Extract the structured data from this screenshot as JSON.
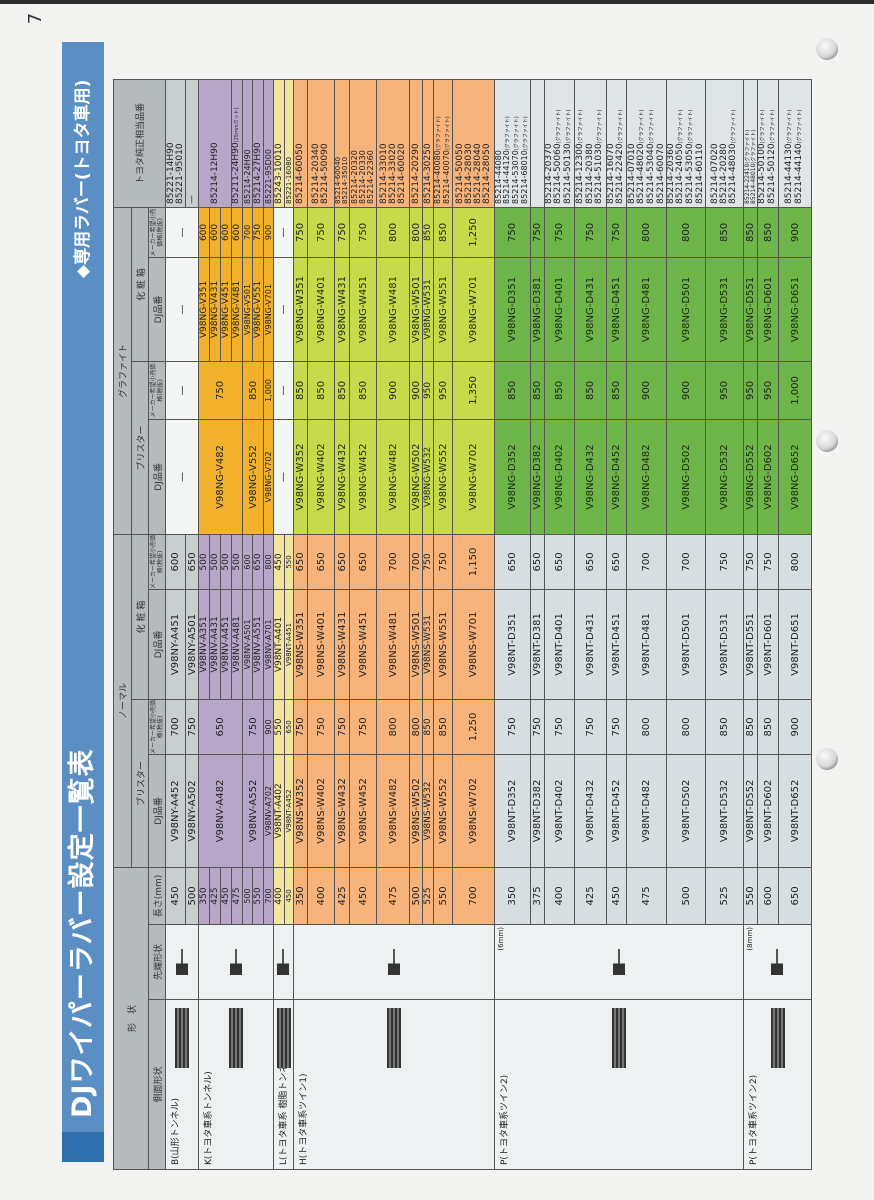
{
  "page_number": "7",
  "title": "DJワイパーラバー設定一覧表",
  "subtitle": "◆専用ラバー(トヨタ車用)",
  "headers": {
    "shape": "形　状",
    "side": "側面形状",
    "tip": "先端形状",
    "length": "長さ(mm)",
    "normal": "ノーマル",
    "graphite": "グラファイト",
    "blister": "ブリスター",
    "box": "化 粧 箱",
    "dj": "DJ品番",
    "price": "メーカー希望小売価格(税抜)",
    "toyota": "トヨタ純正相当品番"
  },
  "toyota_note": "グラファイト",
  "groups": [
    {
      "label": "B(山形トンネル)",
      "tip_note": "",
      "colors": {
        "normal": "#c8cdd0",
        "graphite": "#f4f5f5",
        "toyota": "#c8cdd0"
      },
      "rows": [
        {
          "length": "450",
          "nb": "V98NY-A452",
          "nbp": "700",
          "nx": "V98NY-A451",
          "nxp": "600",
          "gb": "—",
          "gbp": "—",
          "gx": "—",
          "gxp": "—",
          "toyota": [
            {
              "code": "85221-14H90"
            },
            {
              "code": "85221-95010"
            }
          ]
        },
        {
          "length": "500",
          "nb": "V98NY-A502",
          "nbp": "750",
          "nx": "V98NY-A501",
          "nxp": "650",
          "gb": null,
          "gbp": null,
          "gx": null,
          "gxp": null,
          "toyota": [
            {
              "code": "—"
            }
          ]
        }
      ]
    },
    {
      "label": "K(トヨタ車系トンネル)",
      "tip_note": "",
      "colors": {
        "normal": "#b8a6c9",
        "graphite": "#f1b12c",
        "toyota": "#b8a6c9"
      },
      "rows": [
        {
          "length": "350",
          "nb": "V98NV-A482",
          "nbp": "650",
          "nx": "V98NV-A351",
          "nxp": "500",
          "gb": "V98NG-V482",
          "gbp": "750",
          "gx": "V98NG-V351",
          "gxp": "600",
          "toyota": [
            {
              "code": "85214-12H90"
            }
          ]
        },
        {
          "length": "425",
          "nb": null,
          "nbp": null,
          "nx": "V98NV-A431",
          "nxp": "500",
          "gb": null,
          "gbp": null,
          "gx": "V98NG-V431",
          "gxp": "600",
          "toyota": null
        },
        {
          "length": "450",
          "nb": null,
          "nbp": null,
          "nx": "V98NV-A451",
          "nxp": "500",
          "gb": null,
          "gbp": null,
          "gx": "V98NG-V451",
          "gxp": "600",
          "toyota": null
        },
        {
          "length": "475",
          "nb": null,
          "nbp": null,
          "nx": "V98NV-A481",
          "nxp": "500",
          "gb": null,
          "gbp": null,
          "gx": "V98NG-V481",
          "gxp": "600",
          "toyota": [
            {
              "code": "85211-24H90",
              "note": "(25mmカット)"
            }
          ]
        },
        {
          "length": "500",
          "nb": "V98NV-A552",
          "nbp": "750",
          "nx": "V98NV-A501",
          "nxp": "600",
          "gb": "V98NG-V552",
          "gbp": "850",
          "gx": "V98NG-V501",
          "gxp": "700",
          "toyota": [
            {
              "code": "85214-24H90"
            }
          ]
        },
        {
          "length": "550",
          "nb": null,
          "nbp": null,
          "nx": "V98NV-A551",
          "nxp": "650",
          "gb": null,
          "gbp": null,
          "gx": "V98NG-V551",
          "gxp": "750",
          "toyota": [
            {
              "code": "85214-27H90"
            }
          ]
        },
        {
          "length": "700",
          "nb": "V98NV-A702",
          "nbp": "900",
          "nx": "V98NV-A701",
          "nxp": "800",
          "gb": "V98NG-V702",
          "gbp": "1,000",
          "gx": "V98NG-V701",
          "gxp": "900",
          "toyota": [
            {
              "code": "85221-95D00"
            }
          ]
        }
      ]
    },
    {
      "label": "L(トヨタ車系 樹脂トンネル)",
      "tip_note": "",
      "colors": {
        "normal": "#f2e59e",
        "graphite": "#f4f5f5",
        "toyota": "#f2e59e"
      },
      "rows": [
        {
          "length": "400",
          "nb": "V98NT-A402",
          "nbp": "550",
          "nx": "V98NT-A401",
          "nxp": "450",
          "gb": "—",
          "gbp": "—",
          "gx": "—",
          "gxp": "—",
          "toyota": [
            {
              "code": "85243-10010"
            }
          ]
        },
        {
          "length": "450",
          "nb": "V98NT-A452",
          "nbp": "650",
          "nx": "V98NT-A451",
          "nxp": "550",
          "gb": null,
          "gbp": null,
          "gx": null,
          "gxp": null,
          "toyota": [
            {
              "code": "85221-16080"
            }
          ]
        }
      ]
    },
    {
      "label": "H(トヨタ車系ツイン1)",
      "tip_note": "",
      "colors": {
        "normal": "#f6b47c",
        "graphite": "#c6da4c",
        "toyota": "#f6b47c"
      },
      "rows": [
        {
          "length": "350",
          "nb": "V98NS-W352",
          "nbp": "750",
          "nx": "V98NS-W351",
          "nxp": "650",
          "gb": "V98NG-W352",
          "gbp": "850",
          "gx": "V98NG-W351",
          "gxp": "750",
          "toyota": [
            {
              "code": "85214-60050"
            }
          ]
        },
        {
          "length": "400",
          "nb": "V98NS-W402",
          "nbp": "750",
          "nx": "V98NS-W401",
          "nxp": "650",
          "gb": "V98NG-W402",
          "gbp": "850",
          "gx": "V98NG-W401",
          "gxp": "750",
          "toyota": [
            {
              "code": "85214-20340"
            },
            {
              "code": "85214-50090"
            }
          ]
        },
        {
          "length": "425",
          "nb": "V98NS-W432",
          "nbp": "750",
          "nx": "V98NS-W431",
          "nxp": "650",
          "gb": "V98NG-W432",
          "gbp": "850",
          "gx": "V98NG-W431",
          "gxp": "750",
          "toyota": [
            {
              "code": "85214-60040"
            },
            {
              "code": "85214-35010"
            }
          ]
        },
        {
          "length": "450",
          "nb": "V98NS-W452",
          "nbp": "750",
          "nx": "V98NS-W451",
          "nxp": "650",
          "gb": "V98NG-W452",
          "gbp": "850",
          "gx": "V98NG-W451",
          "gxp": "750",
          "toyota": [
            {
              "code": "85214-20320"
            },
            {
              "code": "85214-20330"
            },
            {
              "code": "85214-22360"
            }
          ]
        },
        {
          "length": "475",
          "nb": "V98NS-W482",
          "nbp": "800",
          "nx": "V98NS-W481",
          "nxp": "700",
          "gb": "V98NG-W482",
          "gbp": "900",
          "gx": "V98NG-W481",
          "gxp": "800",
          "toyota": [
            {
              "code": "85214-33010"
            },
            {
              "code": "85214-33020"
            },
            {
              "code": "85214-60020"
            }
          ]
        },
        {
          "length": "500",
          "nb": "V98NS-W502",
          "nbp": "800",
          "nx": "V98NS-W501",
          "nxp": "700",
          "gb": "V98NG-W502",
          "gbp": "900",
          "gx": "V98NG-W501",
          "gxp": "800",
          "toyota": [
            {
              "code": "85214-20290"
            }
          ]
        },
        {
          "length": "525",
          "nb": "V98NS-W532",
          "nbp": "850",
          "nx": "V98NS-W531",
          "nxp": "750",
          "gb": "V98NG-W532",
          "gbp": "950",
          "gx": "V98NG-W531",
          "gxp": "850",
          "toyota": [
            {
              "code": "85214-30250"
            }
          ]
        },
        {
          "length": "550",
          "nb": "V98NS-W552",
          "nbp": "850",
          "nx": "V98NS-W551",
          "nxp": "750",
          "gb": "V98NG-W552",
          "gbp": "950",
          "gx": "V98NG-W551",
          "gxp": "850",
          "toyota": [
            {
              "code": "85214-40080",
              "note": "(グラファイト)"
            },
            {
              "code": "85214-40070",
              "note": "(グラファイト)"
            }
          ]
        },
        {
          "length": "700",
          "nb": "V98NS-W702",
          "nbp": "1,250",
          "nx": "V98NS-W701",
          "nxp": "1,150",
          "gb": "V98NG-W702",
          "gbp": "1,350",
          "gx": "V98NG-W701",
          "gxp": "1,250",
          "toyota": [
            {
              "code": "85214-50050"
            },
            {
              "code": "85214-28030"
            },
            {
              "code": "85214-28040"
            },
            {
              "code": "85214-28050"
            }
          ]
        }
      ]
    },
    {
      "label": "P(トヨタ車系ツイン2)",
      "tip_note": "(6mm)",
      "colors": {
        "normal": "#d6dee1",
        "graphite": "#6db449",
        "toyota": "#dfe5e7"
      },
      "rows": [
        {
          "length": "350",
          "nb": "V98NT-D352",
          "nbp": "750",
          "nx": "V98NT-D351",
          "nxp": "650",
          "gb": "V98NG-D352",
          "gbp": "850",
          "gx": "V98NG-D351",
          "gxp": "750",
          "toyota": [
            {
              "code": "85214-44080"
            },
            {
              "code": "85214-44120",
              "note": "(グラファイト)"
            },
            {
              "code": "85214-53070",
              "note": "(グラファイト)"
            },
            {
              "code": "85214-68010",
              "note": "(グラファイト)"
            }
          ]
        },
        {
          "length": "375",
          "nb": "V98NT-D382",
          "nbp": "750",
          "nx": "V98NT-D381",
          "nxp": "650",
          "gb": "V98NG-D382",
          "gbp": "850",
          "gx": "V98NG-D381",
          "gxp": "750",
          "toyota": []
        },
        {
          "length": "400",
          "nb": "V98NT-D402",
          "nbp": "750",
          "nx": "V98NT-D401",
          "nxp": "650",
          "gb": "V98NG-D402",
          "gbp": "850",
          "gx": "V98NG-D401",
          "gxp": "750",
          "toyota": [
            {
              "code": "85214-20370"
            },
            {
              "code": "85214-50060",
              "note": "(グラファイト)"
            },
            {
              "code": "85214-50130",
              "note": "(グラファイト)"
            }
          ]
        },
        {
          "length": "425",
          "nb": "V98NT-D432",
          "nbp": "750",
          "nx": "V98NT-D431",
          "nxp": "650",
          "gb": "V98NG-D432",
          "gbp": "850",
          "gx": "V98NG-D431",
          "gxp": "750",
          "toyota": [
            {
              "code": "85214-12300",
              "note": "(グラファイト)"
            },
            {
              "code": "85214-20380"
            },
            {
              "code": "85214-51030",
              "note": "(グラファイト)"
            }
          ]
        },
        {
          "length": "450",
          "nb": "V98NT-D452",
          "nbp": "750",
          "nx": "V98NT-D451",
          "nxp": "650",
          "gb": "V98NG-D452",
          "gbp": "850",
          "gx": "V98NG-D451",
          "gxp": "750",
          "toyota": [
            {
              "code": "85214-16070"
            },
            {
              "code": "85214-22420",
              "note": "(グラファイト)"
            }
          ]
        },
        {
          "length": "475",
          "nb": "V98NT-D482",
          "nbp": "800",
          "nx": "V98NT-D481",
          "nxp": "700",
          "gb": "V98NG-D482",
          "gbp": "900",
          "gx": "V98NG-D481",
          "gxp": "800",
          "toyota": [
            {
              "code": "85214-07010"
            },
            {
              "code": "85214-48020",
              "note": "(グラファイト)"
            },
            {
              "code": "85214-53040",
              "note": "(グラファイト)"
            },
            {
              "code": "85214-60070"
            }
          ]
        },
        {
          "length": "500",
          "nb": "V98NT-D502",
          "nbp": "800",
          "nx": "V98NT-D501",
          "nxp": "700",
          "gb": "V98NG-D502",
          "gbp": "900",
          "gx": "V98NG-D501",
          "gxp": "800",
          "toyota": [
            {
              "code": "85214-20360"
            },
            {
              "code": "85214-24050",
              "note": "(グラファイト)"
            },
            {
              "code": "85214-53050",
              "note": "(グラファイト)"
            },
            {
              "code": "85214-60110"
            }
          ]
        },
        {
          "length": "525",
          "nb": "V98NT-D532",
          "nbp": "850",
          "nx": "V98NT-D531",
          "nxp": "750",
          "gb": "V98NG-D532",
          "gbp": "950",
          "gx": "V98NG-D531",
          "gxp": "850",
          "toyota": [
            {
              "code": "85214-07020"
            },
            {
              "code": "85214-20280"
            },
            {
              "code": "85214-48030",
              "note": "(グラファイト)"
            }
          ]
        }
      ]
    },
    {
      "label": "P(トヨタ車系ツイン2)",
      "tip_note": "(8mm)",
      "colors": {
        "normal": "#d6dee1",
        "graphite": "#6db449",
        "toyota": "#dfe5e7"
      },
      "rows": [
        {
          "length": "550",
          "nb": "V98NT-D552",
          "nbp": "850",
          "nx": "V98NT-D551",
          "nxp": "750",
          "gb": "V98NG-D552",
          "gbp": "950",
          "gx": "V98NG-D551",
          "gxp": "850",
          "toyota": [
            {
              "code": "85214-22410",
              "note": "(グラファイト)"
            },
            {
              "code": "85214-48010",
              "note": "(グラファイト)"
            }
          ]
        },
        {
          "length": "600",
          "nb": "V98NT-D602",
          "nbp": "850",
          "nx": "V98NT-D601",
          "nxp": "750",
          "gb": "V98NG-D602",
          "gbp": "950",
          "gx": "V98NG-D601",
          "gxp": "850",
          "toyota": [
            {
              "code": "85214-50100",
              "note": "(グラファイト)"
            },
            {
              "code": "85214-50120",
              "note": "(グラファイト)"
            }
          ]
        },
        {
          "length": "650",
          "nb": "V98NT-D652",
          "nbp": "900",
          "nx": "V98NT-D651",
          "nxp": "800",
          "gb": "V98NG-D652",
          "gbp": "1,000",
          "gx": "V98NG-D651",
          "gxp": "900",
          "toyota": [
            {
              "code": "85214-44130",
              "note": "(グラファイト)"
            },
            {
              "code": "85214-44140",
              "note": "(グラファイト)"
            }
          ]
        }
      ]
    }
  ]
}
